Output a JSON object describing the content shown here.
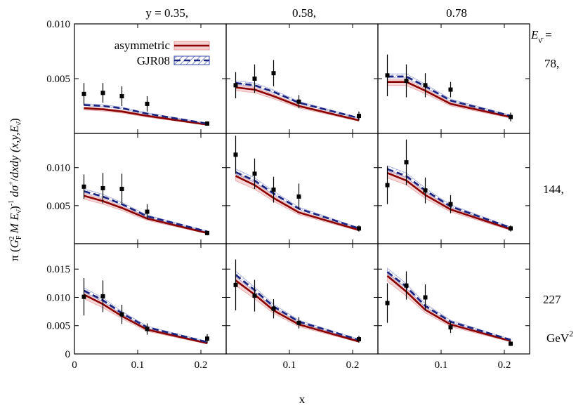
{
  "chart_data": {
    "type": "line",
    "xlabel": "x",
    "ylabel": "π (G_F² M E_ν̄)⁻¹ dσ⁺/dxdy (x,y,E_ν̄)",
    "ylabel_parts": {
      "pi": "π",
      "G": "G",
      "F": "F",
      "two": "2",
      "M": "M",
      "E": "E",
      "nubar": "ν̄",
      "minus_one": "-1",
      "dsigma": "dσ",
      "plus": "+",
      "dxdy": "dxdy",
      "args": "(x,y,E"
    },
    "legend": [
      "asymmetric",
      "GJR08"
    ],
    "legend_position": "top-left panel, upper right",
    "column_labels": [
      "y = 0.35,",
      "0.58,",
      "0.78"
    ],
    "row_header": "E_ν̄ =",
    "row_labels": [
      "78,",
      "144,",
      "227"
    ],
    "energy_unit": "GeV²",
    "colors": {
      "asymmetric": "#8b0000",
      "asymmetric_band": "#e8a0a0",
      "GJR08": "#1a237e",
      "GJR08_hatch": "#3949ab",
      "data": "#000000"
    },
    "x_ticks": [
      "0",
      "0.1",
      "0.2"
    ],
    "x_tick_values": [
      0,
      0.1,
      0.2
    ],
    "xlim": [
      0,
      0.24
    ],
    "rows": [
      {
        "energy": "78,",
        "ylim": [
          0,
          0.01
        ],
        "y_ticks": [
          "0.005",
          "0.010"
        ],
        "y_tick_values": [
          0.005,
          0.01
        ],
        "panels": [
          {
            "y": "0.35",
            "x": [
              0.015,
              0.045,
              0.075,
              0.115,
              0.21
            ],
            "asymmetric": [
              0.0023,
              0.0022,
              0.002,
              0.0016,
              0.0008
            ],
            "GJR08": [
              0.0026,
              0.0025,
              0.0023,
              0.0018,
              0.0009
            ],
            "data": [
              {
                "x": 0.015,
                "y": 0.0036,
                "err": 0.001
              },
              {
                "x": 0.045,
                "y": 0.0037,
                "err": 0.0009
              },
              {
                "x": 0.075,
                "y": 0.0034,
                "err": 0.0009
              },
              {
                "x": 0.115,
                "y": 0.0027,
                "err": 0.0007
              },
              {
                "x": 0.21,
                "y": 0.0009,
                "err": 0.0002
              }
            ]
          },
          {
            "y": "0.58",
            "x": [
              0.015,
              0.045,
              0.075,
              0.115,
              0.21
            ],
            "asymmetric": [
              0.0042,
              0.004,
              0.0034,
              0.0025,
              0.0012
            ],
            "GJR08": [
              0.0046,
              0.0044,
              0.0038,
              0.0028,
              0.0014
            ],
            "data": [
              {
                "x": 0.015,
                "y": 0.0044,
                "err": 0.0012
              },
              {
                "x": 0.045,
                "y": 0.005,
                "err": 0.0013
              },
              {
                "x": 0.075,
                "y": 0.0055,
                "err": 0.0012
              },
              {
                "x": 0.115,
                "y": 0.0029,
                "err": 0.0006
              },
              {
                "x": 0.21,
                "y": 0.0016,
                "err": 0.0004
              }
            ]
          },
          {
            "y": "0.78",
            "x": [
              0.015,
              0.045,
              0.075,
              0.115,
              0.21
            ],
            "asymmetric": [
              0.0047,
              0.0047,
              0.0039,
              0.0027,
              0.0015
            ],
            "GJR08": [
              0.0052,
              0.0052,
              0.0043,
              0.003,
              0.0016
            ],
            "data": [
              {
                "x": 0.015,
                "y": 0.0053,
                "err": 0.0019
              },
              {
                "x": 0.045,
                "y": 0.0048,
                "err": 0.0015
              },
              {
                "x": 0.075,
                "y": 0.0044,
                "err": 0.0011
              },
              {
                "x": 0.115,
                "y": 0.004,
                "err": 0.0007
              },
              {
                "x": 0.21,
                "y": 0.0015,
                "err": 0.0004
              }
            ]
          }
        ]
      },
      {
        "energy": "144,",
        "ylim": [
          0,
          0.0145
        ],
        "y_ticks": [
          "0.005",
          "0.010"
        ],
        "y_tick_values": [
          0.005,
          0.01
        ],
        "panels": [
          {
            "y": "0.35",
            "x": [
              0.015,
              0.045,
              0.075,
              0.115,
              0.21
            ],
            "asymmetric": [
              0.0063,
              0.0056,
              0.0047,
              0.0033,
              0.0014
            ],
            "GJR08": [
              0.0069,
              0.0062,
              0.0052,
              0.0036,
              0.0016
            ],
            "data": [
              {
                "x": 0.015,
                "y": 0.0075,
                "err": 0.0016
              },
              {
                "x": 0.045,
                "y": 0.0073,
                "err": 0.002
              },
              {
                "x": 0.075,
                "y": 0.0072,
                "err": 0.002
              },
              {
                "x": 0.115,
                "y": 0.0042,
                "err": 0.001
              },
              {
                "x": 0.21,
                "y": 0.0014,
                "err": 0.0003
              }
            ]
          },
          {
            "y": "0.58",
            "x": [
              0.015,
              0.045,
              0.075,
              0.115,
              0.21
            ],
            "asymmetric": [
              0.0089,
              0.0077,
              0.006,
              0.0041,
              0.0018
            ],
            "GJR08": [
              0.0094,
              0.0083,
              0.0066,
              0.0046,
              0.002
            ],
            "data": [
              {
                "x": 0.015,
                "y": 0.0117,
                "err": 0.0025
              },
              {
                "x": 0.045,
                "y": 0.0092,
                "err": 0.002
              },
              {
                "x": 0.075,
                "y": 0.0071,
                "err": 0.0017
              },
              {
                "x": 0.115,
                "y": 0.0062,
                "err": 0.0017
              },
              {
                "x": 0.21,
                "y": 0.002,
                "err": 0.0004
              }
            ]
          },
          {
            "y": "0.78",
            "x": [
              0.015,
              0.045,
              0.075,
              0.115,
              0.21
            ],
            "asymmetric": [
              0.0093,
              0.0083,
              0.0064,
              0.0045,
              0.0019
            ],
            "GJR08": [
              0.0098,
              0.0089,
              0.007,
              0.0049,
              0.0021
            ],
            "data": [
              {
                "x": 0.015,
                "y": 0.0077,
                "err": 0.0025
              },
              {
                "x": 0.045,
                "y": 0.0107,
                "err": 0.003
              },
              {
                "x": 0.075,
                "y": 0.007,
                "err": 0.0017
              },
              {
                "x": 0.115,
                "y": 0.0052,
                "err": 0.0012
              },
              {
                "x": 0.21,
                "y": 0.002,
                "err": 0.0004
              }
            ]
          }
        ]
      },
      {
        "energy": "227",
        "ylim": [
          0,
          0.0195
        ],
        "y_ticks": [
          "0",
          "0.005",
          "0.010",
          "0.015"
        ],
        "y_tick_values": [
          0,
          0.005,
          0.01,
          0.015
        ],
        "panels": [
          {
            "y": "0.35",
            "x": [
              0.015,
              0.045,
              0.075,
              0.115,
              0.21
            ],
            "asymmetric": [
              0.0105,
              0.0088,
              0.0067,
              0.0043,
              0.0019
            ],
            "GJR08": [
              0.0112,
              0.0095,
              0.0072,
              0.0047,
              0.0021
            ],
            "data": [
              {
                "x": 0.015,
                "y": 0.0101,
                "err": 0.0033
              },
              {
                "x": 0.045,
                "y": 0.0102,
                "err": 0.0028
              },
              {
                "x": 0.075,
                "y": 0.007,
                "err": 0.0017
              },
              {
                "x": 0.115,
                "y": 0.0044,
                "err": 0.001
              },
              {
                "x": 0.21,
                "y": 0.0027,
                "err": 0.0008
              }
            ]
          },
          {
            "y": "0.58",
            "x": [
              0.015,
              0.045,
              0.075,
              0.115,
              0.21
            ],
            "asymmetric": [
              0.013,
              0.0105,
              0.0077,
              0.0052,
              0.0022
            ],
            "GJR08": [
              0.014,
              0.0113,
              0.0084,
              0.0057,
              0.0025
            ],
            "data": [
              {
                "x": 0.015,
                "y": 0.0122,
                "err": 0.0045
              },
              {
                "x": 0.045,
                "y": 0.0103,
                "err": 0.0028
              },
              {
                "x": 0.075,
                "y": 0.008,
                "err": 0.0017
              },
              {
                "x": 0.115,
                "y": 0.0055,
                "err": 0.001
              },
              {
                "x": 0.21,
                "y": 0.0026,
                "err": 0.0006
              }
            ]
          },
          {
            "y": "0.78",
            "x": [
              0.015,
              0.045,
              0.075,
              0.115,
              0.21
            ],
            "asymmetric": [
              0.0138,
              0.011,
              0.0078,
              0.0052,
              0.0023
            ],
            "GJR08": [
              0.0145,
              0.0119,
              0.0085,
              0.0057,
              0.0025
            ],
            "data": [
              {
                "x": 0.015,
                "y": 0.009,
                "err": 0.0035
              },
              {
                "x": 0.045,
                "y": 0.0121,
                "err": 0.0025
              },
              {
                "x": 0.075,
                "y": 0.01,
                "err": 0.0023
              },
              {
                "x": 0.115,
                "y": 0.0047,
                "err": 0.001
              },
              {
                "x": 0.21,
                "y": 0.0018,
                "err": 0.0004
              }
            ]
          }
        ]
      }
    ]
  }
}
